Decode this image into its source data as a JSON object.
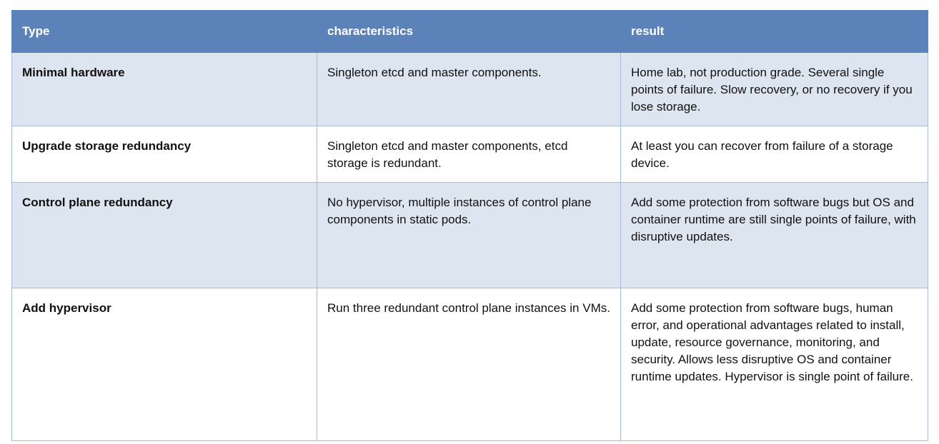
{
  "table": {
    "headers": [
      "Type",
      "characteristics",
      "result"
    ],
    "rows": [
      {
        "type": "Minimal hardware",
        "characteristics": "Singleton etcd and master components.",
        "result": "Home lab, not production grade. Several single points of failure. Slow recovery, or no recovery if you lose storage."
      },
      {
        "type": "Upgrade storage redundancy",
        "characteristics": "Singleton etcd and master components, etcd storage is redundant.",
        "result": "At least you can recover from failure of a storage device."
      },
      {
        "type": "Control plane redundancy",
        "characteristics": "No hypervisor, multiple instances of control plane components in static pods.",
        "result": "Add some protection from software bugs but OS and container runtime are still single points of failure, with disruptive updates."
      },
      {
        "type": "Add hypervisor",
        "characteristics": "Run three redundant control plane instances in VMs.",
        "result": "Add some protection from software bugs, human error, and operational advantages related to install, update, resource governance, monitoring, and security. Allows less disruptive OS and container runtime updates. Hypervisor is single point of failure."
      }
    ]
  },
  "colors": {
    "header": "#5b82b9",
    "shaded_row": "#dde5f0",
    "border": "#a7bad9"
  }
}
